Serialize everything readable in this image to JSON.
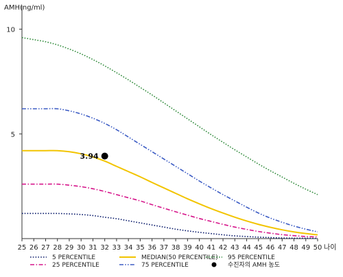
{
  "chart_data": {
    "type": "line",
    "ylabel": "AMH(ng/ml)",
    "xlabel": "나이",
    "x": [
      25,
      26,
      27,
      28,
      29,
      30,
      31,
      32,
      33,
      34,
      35,
      36,
      37,
      38,
      39,
      40,
      41,
      42,
      43,
      44,
      45,
      46,
      47,
      48,
      49,
      50
    ],
    "xlim": [
      25,
      50
    ],
    "ylim": [
      0,
      11
    ],
    "y_ticks": [
      5,
      10
    ],
    "grid": false,
    "series": [
      {
        "name": "5 PERCENTILE",
        "color": "#0a1b6b",
        "dash": "dotted",
        "values": [
          1.2,
          1.2,
          1.2,
          1.2,
          1.18,
          1.15,
          1.1,
          1.02,
          0.95,
          0.85,
          0.75,
          0.65,
          0.55,
          0.45,
          0.37,
          0.3,
          0.24,
          0.18,
          0.13,
          0.1,
          0.07,
          0.05,
          0.03,
          0.02,
          0.02,
          0.01
        ]
      },
      {
        "name": "75 PERCENTILE",
        "color": "#3b5bc4",
        "dash": "dash-dot-dot",
        "values": [
          6.2,
          6.2,
          6.2,
          6.2,
          6.1,
          5.95,
          5.75,
          5.5,
          5.2,
          4.85,
          4.5,
          4.15,
          3.8,
          3.45,
          3.1,
          2.75,
          2.42,
          2.1,
          1.8,
          1.5,
          1.22,
          0.98,
          0.78,
          0.6,
          0.45,
          0.32
        ]
      },
      {
        "name": "25 PERCENTILE",
        "color": "#d6148a",
        "dash": "dash-dot",
        "values": [
          2.6,
          2.6,
          2.6,
          2.6,
          2.55,
          2.48,
          2.38,
          2.25,
          2.1,
          1.95,
          1.8,
          1.62,
          1.45,
          1.28,
          1.12,
          0.96,
          0.82,
          0.68,
          0.55,
          0.44,
          0.34,
          0.26,
          0.19,
          0.14,
          0.1,
          0.08
        ]
      },
      {
        "name": "95 PERCENTILE",
        "color": "#2f8a3a",
        "dash": "dotted",
        "values": [
          9.6,
          9.5,
          9.4,
          9.25,
          9.05,
          8.82,
          8.55,
          8.25,
          7.92,
          7.58,
          7.22,
          6.86,
          6.48,
          6.1,
          5.72,
          5.34,
          4.96,
          4.6,
          4.24,
          3.9,
          3.56,
          3.24,
          2.94,
          2.64,
          2.36,
          2.1
        ]
      },
      {
        "name": "MEDIAN(50 PERCENTILE)",
        "color": "#f2c400",
        "dash": "solid",
        "values": [
          4.2,
          4.2,
          4.2,
          4.2,
          4.15,
          4.05,
          3.9,
          3.7,
          3.45,
          3.2,
          2.95,
          2.68,
          2.42,
          2.16,
          1.9,
          1.66,
          1.43,
          1.22,
          1.02,
          0.84,
          0.68,
          0.54,
          0.42,
          0.32,
          0.24,
          0.18
        ]
      }
    ],
    "points": [
      {
        "name": "수진자의 AMH 농도",
        "x": 32,
        "y": 3.94,
        "label": "3.94",
        "color": "#000000"
      }
    ],
    "legend": {
      "position": "bottom",
      "items": [
        {
          "label": "5 PERCENTILE",
          "series": 0,
          "kind": "line"
        },
        {
          "label": "25 PERCENTILE",
          "series": 2,
          "kind": "line"
        },
        {
          "label": "MEDIAN(50 PERCENTILE)",
          "series": 4,
          "kind": "line"
        },
        {
          "label": "75 PERCENTILE",
          "series": 1,
          "kind": "line"
        },
        {
          "label": "95 PERCENTILE",
          "series": 3,
          "kind": "line"
        },
        {
          "label": "수진자의 AMH 농도",
          "point": 0,
          "kind": "marker"
        }
      ]
    }
  }
}
